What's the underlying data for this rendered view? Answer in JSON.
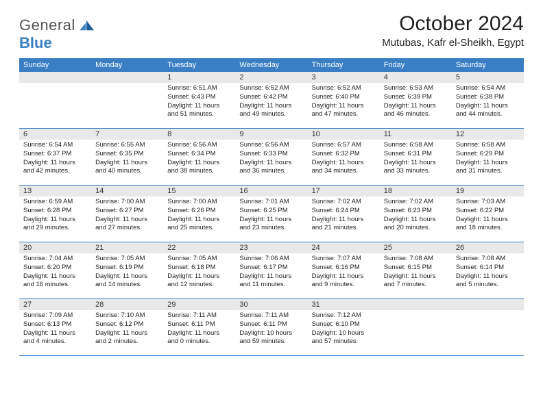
{
  "brand": {
    "text1": "General",
    "text2": "Blue"
  },
  "title": "October 2024",
  "location": "Mutubas, Kafr el-Sheikh, Egypt",
  "header_bg": "#3a7fc4",
  "header_text_color": "#ffffff",
  "daynum_bg": "#e9e9e9",
  "week_border_color": "#3a7fc4",
  "font_family": "Arial",
  "title_fontsize": 30,
  "body_fontsize": 9.5,
  "weekdays": [
    "Sunday",
    "Monday",
    "Tuesday",
    "Wednesday",
    "Thursday",
    "Friday",
    "Saturday"
  ],
  "weeks": [
    [
      {
        "n": "",
        "sunrise": "",
        "sunset": "",
        "daylight": ""
      },
      {
        "n": "",
        "sunrise": "",
        "sunset": "",
        "daylight": ""
      },
      {
        "n": "1",
        "sunrise": "6:51 AM",
        "sunset": "6:43 PM",
        "daylight": "11 hours and 51 minutes."
      },
      {
        "n": "2",
        "sunrise": "6:52 AM",
        "sunset": "6:42 PM",
        "daylight": "11 hours and 49 minutes."
      },
      {
        "n": "3",
        "sunrise": "6:52 AM",
        "sunset": "6:40 PM",
        "daylight": "11 hours and 47 minutes."
      },
      {
        "n": "4",
        "sunrise": "6:53 AM",
        "sunset": "6:39 PM",
        "daylight": "11 hours and 46 minutes."
      },
      {
        "n": "5",
        "sunrise": "6:54 AM",
        "sunset": "6:38 PM",
        "daylight": "11 hours and 44 minutes."
      }
    ],
    [
      {
        "n": "6",
        "sunrise": "6:54 AM",
        "sunset": "6:37 PM",
        "daylight": "11 hours and 42 minutes."
      },
      {
        "n": "7",
        "sunrise": "6:55 AM",
        "sunset": "6:35 PM",
        "daylight": "11 hours and 40 minutes."
      },
      {
        "n": "8",
        "sunrise": "6:56 AM",
        "sunset": "6:34 PM",
        "daylight": "11 hours and 38 minutes."
      },
      {
        "n": "9",
        "sunrise": "6:56 AM",
        "sunset": "6:33 PM",
        "daylight": "11 hours and 36 minutes."
      },
      {
        "n": "10",
        "sunrise": "6:57 AM",
        "sunset": "6:32 PM",
        "daylight": "11 hours and 34 minutes."
      },
      {
        "n": "11",
        "sunrise": "6:58 AM",
        "sunset": "6:31 PM",
        "daylight": "11 hours and 33 minutes."
      },
      {
        "n": "12",
        "sunrise": "6:58 AM",
        "sunset": "6:29 PM",
        "daylight": "11 hours and 31 minutes."
      }
    ],
    [
      {
        "n": "13",
        "sunrise": "6:59 AM",
        "sunset": "6:28 PM",
        "daylight": "11 hours and 29 minutes."
      },
      {
        "n": "14",
        "sunrise": "7:00 AM",
        "sunset": "6:27 PM",
        "daylight": "11 hours and 27 minutes."
      },
      {
        "n": "15",
        "sunrise": "7:00 AM",
        "sunset": "6:26 PM",
        "daylight": "11 hours and 25 minutes."
      },
      {
        "n": "16",
        "sunrise": "7:01 AM",
        "sunset": "6:25 PM",
        "daylight": "11 hours and 23 minutes."
      },
      {
        "n": "17",
        "sunrise": "7:02 AM",
        "sunset": "6:24 PM",
        "daylight": "11 hours and 21 minutes."
      },
      {
        "n": "18",
        "sunrise": "7:02 AM",
        "sunset": "6:23 PM",
        "daylight": "11 hours and 20 minutes."
      },
      {
        "n": "19",
        "sunrise": "7:03 AM",
        "sunset": "6:22 PM",
        "daylight": "11 hours and 18 minutes."
      }
    ],
    [
      {
        "n": "20",
        "sunrise": "7:04 AM",
        "sunset": "6:20 PM",
        "daylight": "11 hours and 16 minutes."
      },
      {
        "n": "21",
        "sunrise": "7:05 AM",
        "sunset": "6:19 PM",
        "daylight": "11 hours and 14 minutes."
      },
      {
        "n": "22",
        "sunrise": "7:05 AM",
        "sunset": "6:18 PM",
        "daylight": "11 hours and 12 minutes."
      },
      {
        "n": "23",
        "sunrise": "7:06 AM",
        "sunset": "6:17 PM",
        "daylight": "11 hours and 11 minutes."
      },
      {
        "n": "24",
        "sunrise": "7:07 AM",
        "sunset": "6:16 PM",
        "daylight": "11 hours and 9 minutes."
      },
      {
        "n": "25",
        "sunrise": "7:08 AM",
        "sunset": "6:15 PM",
        "daylight": "11 hours and 7 minutes."
      },
      {
        "n": "26",
        "sunrise": "7:08 AM",
        "sunset": "6:14 PM",
        "daylight": "11 hours and 5 minutes."
      }
    ],
    [
      {
        "n": "27",
        "sunrise": "7:09 AM",
        "sunset": "6:13 PM",
        "daylight": "11 hours and 4 minutes."
      },
      {
        "n": "28",
        "sunrise": "7:10 AM",
        "sunset": "6:12 PM",
        "daylight": "11 hours and 2 minutes."
      },
      {
        "n": "29",
        "sunrise": "7:11 AM",
        "sunset": "6:11 PM",
        "daylight": "11 hours and 0 minutes."
      },
      {
        "n": "30",
        "sunrise": "7:11 AM",
        "sunset": "6:11 PM",
        "daylight": "10 hours and 59 minutes."
      },
      {
        "n": "31",
        "sunrise": "7:12 AM",
        "sunset": "6:10 PM",
        "daylight": "10 hours and 57 minutes."
      },
      {
        "n": "",
        "sunrise": "",
        "sunset": "",
        "daylight": ""
      },
      {
        "n": "",
        "sunrise": "",
        "sunset": "",
        "daylight": ""
      }
    ]
  ],
  "labels": {
    "sunrise": "Sunrise:",
    "sunset": "Sunset:",
    "daylight": "Daylight:"
  }
}
